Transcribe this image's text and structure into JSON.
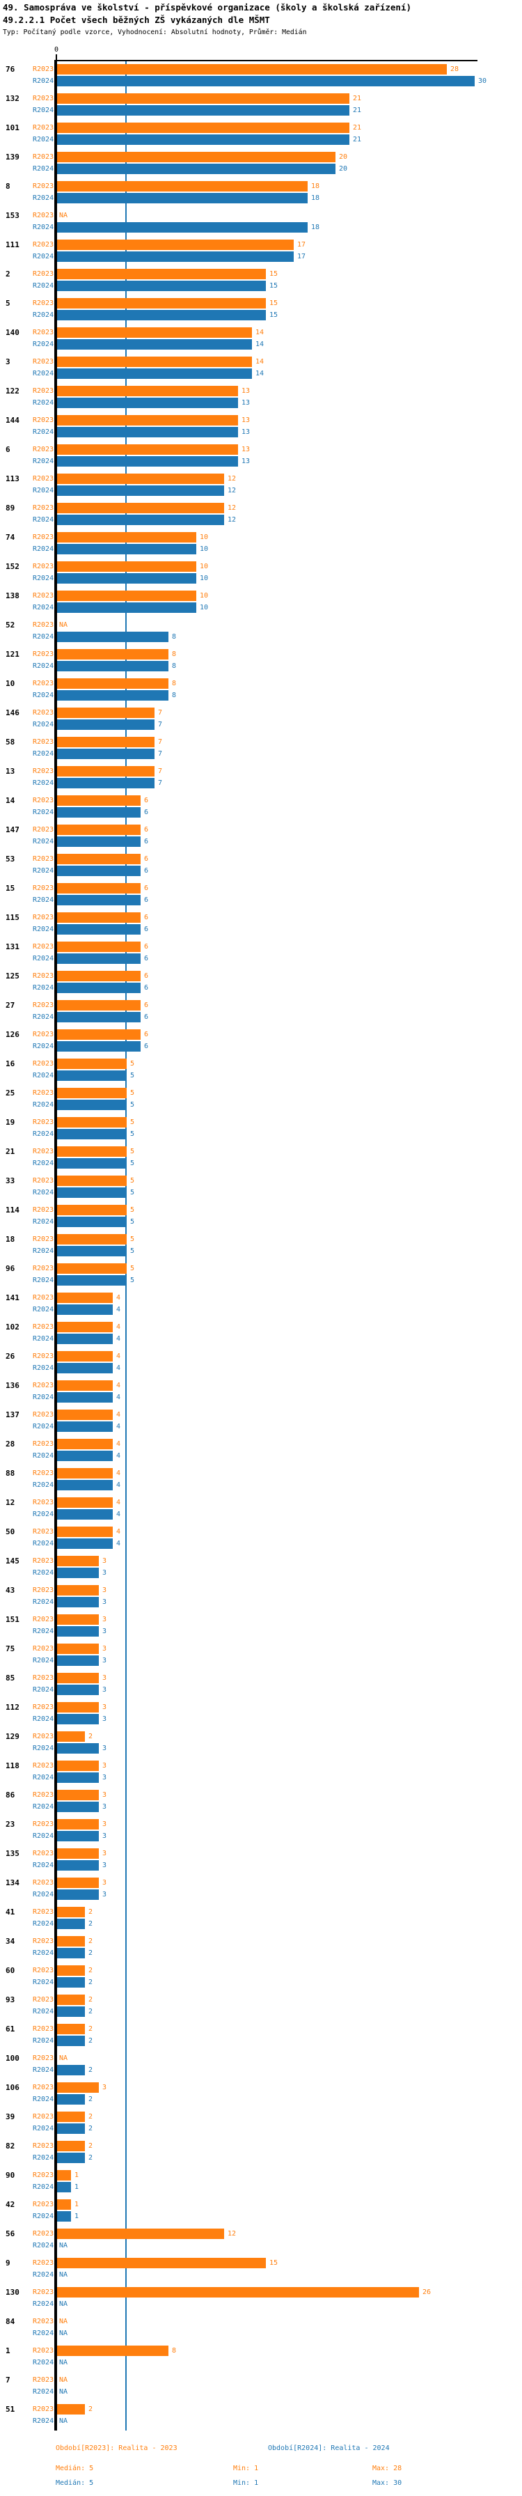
{
  "header": {
    "title": "49. Samospráva ve školství - příspěvkové organizace (školy a školská zařízení)",
    "subtitle": "49.2.2.1 Počet všech běžných ZŠ vykázaných dle MŠMT",
    "meta": "Typ: Počítaný podle vzorce, Vyhodnocení: Absolutní hodnoty, Průměr: Medián"
  },
  "axis": {
    "zero": "0"
  },
  "colors": {
    "r2023": "#ff7f0e",
    "r2024": "#1f77b4",
    "median_line": "#1f77b4",
    "axis": "#000000"
  },
  "legend": {
    "period_r2023": "Období[R2023]: Realita - 2023",
    "period_r2024": "Období[R2024]: Realita - 2024",
    "stats_r2023": {
      "median": "Medián: 5",
      "min": "Min: 1",
      "max": "Max: 28"
    },
    "stats_r2024": {
      "median": "Medián: 5",
      "min": "Min: 1",
      "max": "Max: 30"
    }
  },
  "chart_data": {
    "type": "bar",
    "orientation": "horizontal",
    "na_text": "NA",
    "median_line_value": 5,
    "value_axis": {
      "min": 0,
      "tick_labels": [
        "0"
      ],
      "implied_max": 30
    },
    "series": [
      {
        "key": "R2023",
        "label": "R2023",
        "period": "Realita - 2023",
        "color": "#ff7f0e",
        "median": 5,
        "min": 1,
        "max": 28
      },
      {
        "key": "R2024",
        "label": "R2024",
        "period": "Realita - 2024",
        "color": "#1f77b4",
        "median": 5,
        "min": 1,
        "max": 30
      }
    ],
    "groups": [
      {
        "id": "76",
        "R2023": 28,
        "R2024": 30
      },
      {
        "id": "132",
        "R2023": 21,
        "R2024": 21
      },
      {
        "id": "101",
        "R2023": 21,
        "R2024": 21
      },
      {
        "id": "139",
        "R2023": 20,
        "R2024": 20
      },
      {
        "id": "8",
        "R2023": 18,
        "R2024": 18
      },
      {
        "id": "153",
        "R2023": null,
        "R2024": 18
      },
      {
        "id": "111",
        "R2023": 17,
        "R2024": 17
      },
      {
        "id": "2",
        "R2023": 15,
        "R2024": 15
      },
      {
        "id": "5",
        "R2023": 15,
        "R2024": 15
      },
      {
        "id": "140",
        "R2023": 14,
        "R2024": 14
      },
      {
        "id": "3",
        "R2023": 14,
        "R2024": 14
      },
      {
        "id": "122",
        "R2023": 13,
        "R2024": 13
      },
      {
        "id": "144",
        "R2023": 13,
        "R2024": 13
      },
      {
        "id": "6",
        "R2023": 13,
        "R2024": 13
      },
      {
        "id": "113",
        "R2023": 12,
        "R2024": 12
      },
      {
        "id": "89",
        "R2023": 12,
        "R2024": 12
      },
      {
        "id": "74",
        "R2023": 10,
        "R2024": 10
      },
      {
        "id": "152",
        "R2023": 10,
        "R2024": 10
      },
      {
        "id": "138",
        "R2023": 10,
        "R2024": 10
      },
      {
        "id": "52",
        "R2023": null,
        "R2024": 8
      },
      {
        "id": "121",
        "R2023": 8,
        "R2024": 8
      },
      {
        "id": "10",
        "R2023": 8,
        "R2024": 8
      },
      {
        "id": "146",
        "R2023": 7,
        "R2024": 7
      },
      {
        "id": "58",
        "R2023": 7,
        "R2024": 7
      },
      {
        "id": "13",
        "R2023": 7,
        "R2024": 7
      },
      {
        "id": "14",
        "R2023": 6,
        "R2024": 6
      },
      {
        "id": "147",
        "R2023": 6,
        "R2024": 6
      },
      {
        "id": "53",
        "R2023": 6,
        "R2024": 6
      },
      {
        "id": "15",
        "R2023": 6,
        "R2024": 6
      },
      {
        "id": "115",
        "R2023": 6,
        "R2024": 6
      },
      {
        "id": "131",
        "R2023": 6,
        "R2024": 6
      },
      {
        "id": "125",
        "R2023": 6,
        "R2024": 6
      },
      {
        "id": "27",
        "R2023": 6,
        "R2024": 6
      },
      {
        "id": "126",
        "R2023": 6,
        "R2024": 6
      },
      {
        "id": "16",
        "R2023": 5,
        "R2024": 5
      },
      {
        "id": "25",
        "R2023": 5,
        "R2024": 5
      },
      {
        "id": "19",
        "R2023": 5,
        "R2024": 5
      },
      {
        "id": "21",
        "R2023": 5,
        "R2024": 5
      },
      {
        "id": "33",
        "R2023": 5,
        "R2024": 5
      },
      {
        "id": "114",
        "R2023": 5,
        "R2024": 5
      },
      {
        "id": "18",
        "R2023": 5,
        "R2024": 5
      },
      {
        "id": "96",
        "R2023": 5,
        "R2024": 5
      },
      {
        "id": "141",
        "R2023": 4,
        "R2024": 4
      },
      {
        "id": "102",
        "R2023": 4,
        "R2024": 4
      },
      {
        "id": "26",
        "R2023": 4,
        "R2024": 4
      },
      {
        "id": "136",
        "R2023": 4,
        "R2024": 4
      },
      {
        "id": "137",
        "R2023": 4,
        "R2024": 4
      },
      {
        "id": "28",
        "R2023": 4,
        "R2024": 4
      },
      {
        "id": "88",
        "R2023": 4,
        "R2024": 4
      },
      {
        "id": "12",
        "R2023": 4,
        "R2024": 4
      },
      {
        "id": "50",
        "R2023": 4,
        "R2024": 4
      },
      {
        "id": "145",
        "R2023": 3,
        "R2024": 3
      },
      {
        "id": "43",
        "R2023": 3,
        "R2024": 3
      },
      {
        "id": "151",
        "R2023": 3,
        "R2024": 3
      },
      {
        "id": "75",
        "R2023": 3,
        "R2024": 3
      },
      {
        "id": "85",
        "R2023": 3,
        "R2024": 3
      },
      {
        "id": "112",
        "R2023": 3,
        "R2024": 3
      },
      {
        "id": "129",
        "R2023": 2,
        "R2024": 3
      },
      {
        "id": "118",
        "R2023": 3,
        "R2024": 3
      },
      {
        "id": "86",
        "R2023": 3,
        "R2024": 3
      },
      {
        "id": "23",
        "R2023": 3,
        "R2024": 3
      },
      {
        "id": "135",
        "R2023": 3,
        "R2024": 3
      },
      {
        "id": "134",
        "R2023": 3,
        "R2024": 3
      },
      {
        "id": "41",
        "R2023": 2,
        "R2024": 2
      },
      {
        "id": "34",
        "R2023": 2,
        "R2024": 2
      },
      {
        "id": "60",
        "R2023": 2,
        "R2024": 2
      },
      {
        "id": "93",
        "R2023": 2,
        "R2024": 2
      },
      {
        "id": "61",
        "R2023": 2,
        "R2024": 2
      },
      {
        "id": "100",
        "R2023": null,
        "R2024": 2
      },
      {
        "id": "106",
        "R2023": 3,
        "R2024": 2
      },
      {
        "id": "39",
        "R2023": 2,
        "R2024": 2
      },
      {
        "id": "82",
        "R2023": 2,
        "R2024": 2
      },
      {
        "id": "90",
        "R2023": 1,
        "R2024": 1
      },
      {
        "id": "42",
        "R2023": 1,
        "R2024": 1
      },
      {
        "id": "56",
        "R2023": 12,
        "R2024": null
      },
      {
        "id": "9",
        "R2023": 15,
        "R2024": null
      },
      {
        "id": "130",
        "R2023": 26,
        "R2024": null
      },
      {
        "id": "84",
        "R2023": null,
        "R2024": null
      },
      {
        "id": "1",
        "R2023": 8,
        "R2024": null
      },
      {
        "id": "7",
        "R2023": null,
        "R2024": null
      },
      {
        "id": "51",
        "R2023": 2,
        "R2024": null
      }
    ]
  }
}
